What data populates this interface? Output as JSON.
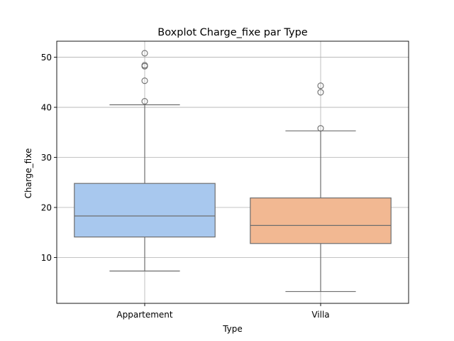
{
  "chart_data": {
    "type": "box",
    "title": "Boxplot Charge_fixe par Type",
    "xlabel": "Type",
    "ylabel": "Charge_fixe",
    "ylim": [
      0.85,
      53.2
    ],
    "yticks": [
      10,
      20,
      30,
      40,
      50
    ],
    "grid": true,
    "categories": [
      "Appartement",
      "Villa"
    ],
    "boxes": [
      {
        "category": "Appartement",
        "color": "#a8c8ee",
        "whisker_low": 7.3,
        "q1": 14.1,
        "median": 18.3,
        "q3": 24.8,
        "whisker_high": 40.5,
        "outliers": [
          41.2,
          45.3,
          48.2,
          48.4,
          50.8
        ]
      },
      {
        "category": "Villa",
        "color": "#f2b892",
        "whisker_low": 3.2,
        "q1": 12.8,
        "median": 16.4,
        "q3": 21.9,
        "whisker_high": 35.3,
        "outliers": [
          35.8,
          43.0,
          44.3
        ]
      }
    ]
  }
}
